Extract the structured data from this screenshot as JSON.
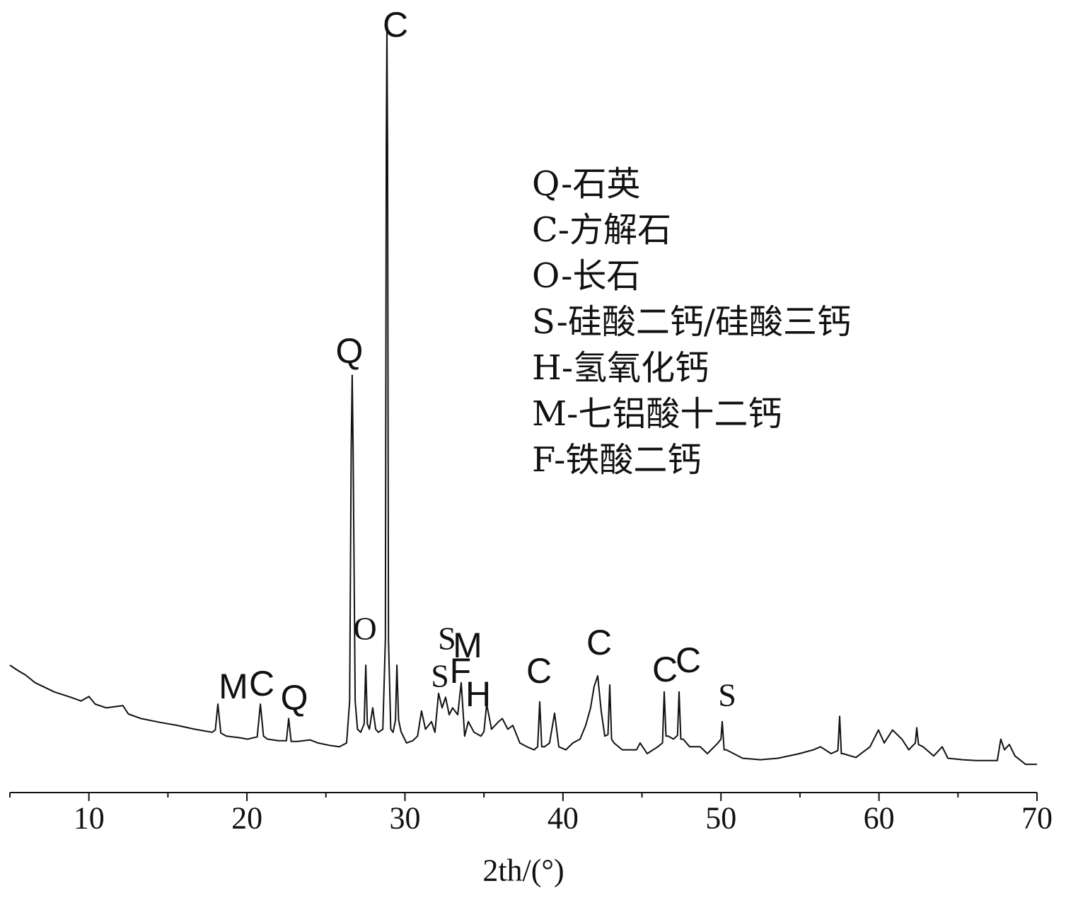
{
  "chart_data": {
    "type": "line",
    "xlabel": "2th/(°)",
    "ylabel": "",
    "xlim": [
      5,
      70
    ],
    "ylim": [
      0,
      100
    ],
    "xticks": [
      10,
      20,
      30,
      40,
      50,
      60,
      70
    ],
    "minor_xticks": [
      5,
      15,
      25,
      35,
      45,
      55,
      65
    ],
    "xtick_labels": [
      "10",
      "20",
      "30",
      "40",
      "50",
      "60",
      "70"
    ],
    "y_axis_visible": false,
    "grid": false,
    "legend_position": "top-right",
    "legend": [
      "Q-石英",
      "C-方解石",
      "O-长石",
      "S-硅酸二钙/硅酸三钙",
      "H-氢氧化钙",
      "M-七铝酸十二钙",
      "F-铁酸二钙"
    ],
    "series": [
      {
        "color": "#111111",
        "x": [
          5.0,
          5.5,
          6.0,
          6.6,
          7.2,
          7.8,
          8.85,
          9.5,
          10.0,
          10.4,
          11.1,
          12.15,
          12.5,
          13.3,
          14.5,
          15.6,
          16.7,
          17.8,
          18.0,
          18.16,
          18.35,
          18.7,
          19.5,
          20.04,
          20.65,
          20.85,
          21.05,
          21.3,
          22.0,
          22.5,
          22.64,
          22.8,
          23.2,
          24.0,
          24.5,
          25.2,
          25.86,
          26.31,
          26.5,
          26.6,
          26.66,
          26.72,
          26.85,
          27.0,
          27.2,
          27.42,
          27.52,
          27.62,
          27.75,
          27.96,
          28.15,
          28.32,
          28.6,
          28.76,
          28.82,
          28.86,
          28.9,
          28.96,
          29.1,
          29.25,
          29.4,
          29.49,
          29.6,
          29.75,
          30.1,
          30.5,
          30.8,
          31.05,
          31.3,
          31.68,
          31.9,
          32.13,
          32.35,
          32.57,
          32.8,
          33.02,
          33.34,
          33.56,
          33.78,
          34.01,
          34.37,
          34.81,
          35.0,
          35.17,
          35.48,
          35.93,
          36.16,
          36.51,
          36.83,
          37.27,
          37.72,
          38.17,
          38.4,
          38.53,
          38.66,
          38.84,
          39.15,
          39.47,
          39.74,
          40.18,
          40.63,
          41.08,
          41.44,
          41.75,
          41.97,
          42.2,
          42.42,
          42.65,
          42.85,
          42.96,
          43.08,
          43.23,
          43.76,
          44.66,
          44.88,
          45.33,
          46.0,
          46.3,
          46.41,
          46.52,
          46.67,
          46.99,
          47.25,
          47.35,
          47.46,
          47.61,
          48.02,
          48.69,
          49.14,
          49.81,
          50.0,
          50.08,
          50.2,
          50.34,
          51.37,
          52.5,
          53.61,
          54.96,
          55.85,
          56.3,
          56.97,
          57.4,
          57.51,
          57.62,
          57.73,
          58.54,
          59.43,
          59.97,
          60.33,
          60.86,
          61.45,
          61.89,
          62.3,
          62.39,
          62.5,
          62.79,
          63.46,
          64.0,
          64.36,
          65.3,
          66.15,
          67.49,
          67.71,
          67.94,
          68.25,
          68.61,
          69.28,
          70.0
        ],
        "y": [
          16.7,
          16.0,
          15.4,
          14.4,
          13.8,
          13.2,
          12.5,
          12.0,
          12.6,
          11.6,
          11.1,
          11.4,
          10.3,
          9.7,
          9.2,
          8.8,
          8.3,
          7.9,
          8.2,
          11.6,
          7.8,
          7.4,
          7.2,
          7.0,
          7.3,
          11.6,
          7.4,
          7.0,
          6.8,
          6.8,
          9.7,
          6.7,
          6.7,
          6.9,
          6.5,
          6.2,
          6.0,
          6.5,
          12.0,
          45.0,
          54.7,
          45.0,
          12.0,
          8.3,
          7.9,
          9.0,
          16.7,
          9.0,
          8.3,
          11.1,
          8.3,
          7.9,
          8.3,
          20.0,
          85.0,
          100,
          85.0,
          20.0,
          8.3,
          7.9,
          9.5,
          16.7,
          9.5,
          8.0,
          6.5,
          6.8,
          7.4,
          10.7,
          8.3,
          9.3,
          7.9,
          13.0,
          11.1,
          12.5,
          10.2,
          11.1,
          10.2,
          14.4,
          7.4,
          9.3,
          7.9,
          7.4,
          8.0,
          11.6,
          8.3,
          9.3,
          9.7,
          8.3,
          8.8,
          6.5,
          6.0,
          5.6,
          6.0,
          11.9,
          6.0,
          6.0,
          6.5,
          10.4,
          6.0,
          5.6,
          6.5,
          7.0,
          8.8,
          11.1,
          13.9,
          15.3,
          10.7,
          7.4,
          7.6,
          14.1,
          7.0,
          6.5,
          5.6,
          5.6,
          6.5,
          5.1,
          6.0,
          6.5,
          13.2,
          7.4,
          7.4,
          7.0,
          7.5,
          13.2,
          7.0,
          7.0,
          6.0,
          6.0,
          5.1,
          6.5,
          7.0,
          9.3,
          5.6,
          5.6,
          4.5,
          4.3,
          4.5,
          5.1,
          5.6,
          6.0,
          5.1,
          5.5,
          10.0,
          5.1,
          5.1,
          4.6,
          6.0,
          8.2,
          6.5,
          8.2,
          7.0,
          5.6,
          6.5,
          8.5,
          6.3,
          6.0,
          4.8,
          6.0,
          4.5,
          4.3,
          4.2,
          4.2,
          7.0,
          5.6,
          6.3,
          4.8,
          3.7,
          3.7
        ]
      }
    ],
    "annotations": [
      {
        "text": "M",
        "x": 18.16
      },
      {
        "text": "C",
        "x": 20.85
      },
      {
        "text": "Q",
        "x": 22.64
      },
      {
        "text": "Q",
        "x": 26.66
      },
      {
        "text": "O",
        "x": 27.52
      },
      {
        "text": "C",
        "x": 28.86
      },
      {
        "text": "S",
        "x": 32.57
      },
      {
        "text": "M",
        "x": 33.56
      },
      {
        "text": "S",
        "x": 32.13
      },
      {
        "text": "F",
        "x": 33.02
      },
      {
        "text": "H",
        "x": 34.01
      },
      {
        "text": "C",
        "x": 38.53
      },
      {
        "text": "C",
        "x": 42.2
      },
      {
        "text": "C",
        "x": 46.41
      },
      {
        "text": "C",
        "x": 47.35
      },
      {
        "text": "S",
        "x": 50.08
      }
    ]
  }
}
